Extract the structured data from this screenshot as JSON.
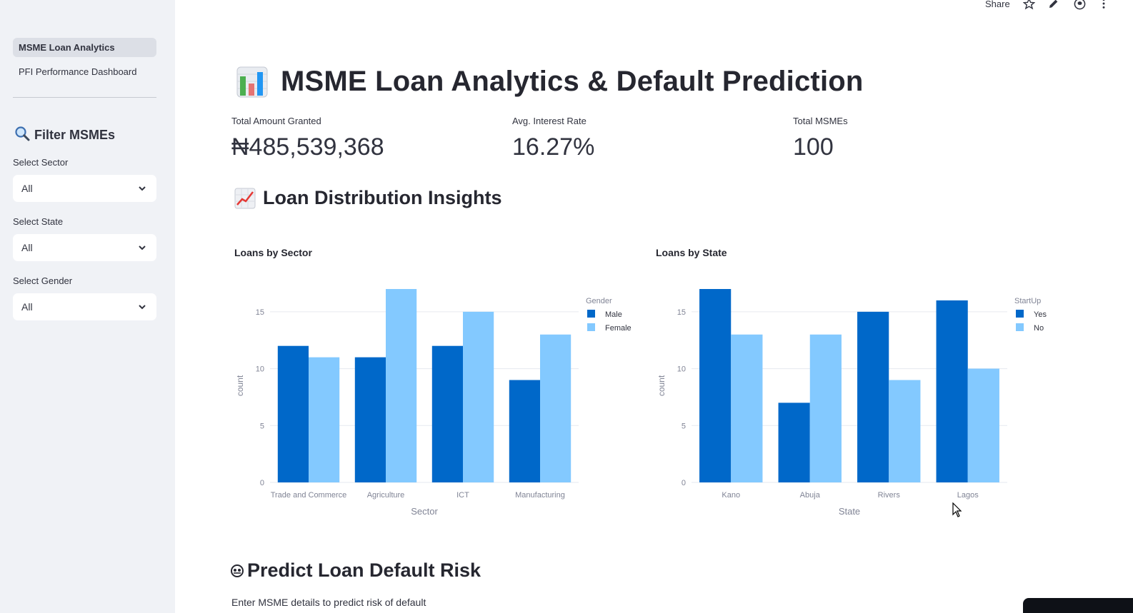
{
  "sidebar": {
    "nav": [
      {
        "label": "MSME Loan Analytics",
        "active": true
      },
      {
        "label": "PFI Performance Dashboard",
        "active": false
      }
    ],
    "filter_header": "Filter MSMEs",
    "filters": [
      {
        "label": "Select Sector",
        "value": "All"
      },
      {
        "label": "Select State",
        "value": "All"
      },
      {
        "label": "Select Gender",
        "value": "All"
      }
    ]
  },
  "toolbar": {
    "share_label": "Share",
    "icons": [
      "star-icon",
      "edit-icon",
      "github-icon",
      "more-icon"
    ]
  },
  "header": {
    "title": "MSME Loan Analytics & Default Prediction",
    "icon": "bar-chart-icon"
  },
  "metrics": [
    {
      "label": "Total Amount Granted",
      "value": "₦485,539,368"
    },
    {
      "label": "Avg. Interest Rate",
      "value": "16.27%"
    },
    {
      "label": "Total MSMEs",
      "value": "100"
    }
  ],
  "insights_section": {
    "title": "Loan Distribution Insights",
    "icon": "trend-up-icon"
  },
  "predict_section": {
    "title": "Predict Loan Default Risk",
    "icon": "crystal-ball-icon",
    "subtitle": "Enter MSME details to predict risk of default"
  },
  "colors": {
    "dark": "#0068c9",
    "light": "#83c9ff",
    "sidebar_bg": "#f0f2f6"
  },
  "chart_data": [
    {
      "type": "bar",
      "title": "Loans by Sector",
      "xlabel": "Sector",
      "ylabel": "count",
      "ylim": [
        0,
        17
      ],
      "yticks": [
        0,
        5,
        10,
        15
      ],
      "legend_title": "Gender",
      "legend_position": "top-right",
      "categories": [
        "Trade and Commerce",
        "Agriculture",
        "ICT",
        "Manufacturing"
      ],
      "series": [
        {
          "name": "Male",
          "values": [
            12,
            11,
            12,
            9
          ],
          "color": "#0068c9"
        },
        {
          "name": "Female",
          "values": [
            11,
            17,
            15,
            13
          ],
          "color": "#83c9ff"
        }
      ]
    },
    {
      "type": "bar",
      "title": "Loans by State",
      "xlabel": "State",
      "ylabel": "count",
      "ylim": [
        0,
        17
      ],
      "yticks": [
        0,
        5,
        10,
        15
      ],
      "legend_title": "StartUp",
      "legend_position": "top-right",
      "categories": [
        "Kano",
        "Abuja",
        "Rivers",
        "Lagos"
      ],
      "series": [
        {
          "name": "Yes",
          "values": [
            17,
            7,
            15,
            16
          ],
          "color": "#0068c9"
        },
        {
          "name": "No",
          "values": [
            13,
            13,
            9,
            10
          ],
          "color": "#83c9ff"
        }
      ]
    }
  ]
}
